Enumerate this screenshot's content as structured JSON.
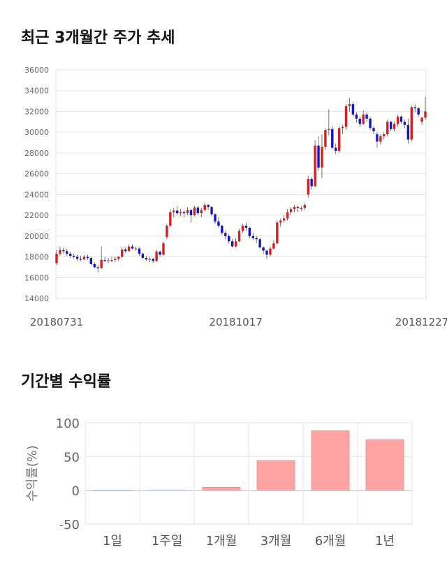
{
  "titles": {
    "price": "최근 3개월간 주가 추세",
    "returns": "기간별 수익률"
  },
  "colors": {
    "up": "#d42020",
    "down": "#1515c8",
    "wick": "#555555",
    "bar": "#ffa3a3",
    "bar_edge": "#e88a8a",
    "grid": "#e6e6e6"
  },
  "chart_data": [
    {
      "type": "candlestick",
      "title": "최근 3개월간 주가 추세",
      "ylim": [
        14000,
        36000
      ],
      "yticks": [
        14000,
        16000,
        18000,
        20000,
        22000,
        24000,
        26000,
        28000,
        30000,
        32000,
        34000,
        36000
      ],
      "xtick_labels": [
        {
          "index": 0,
          "label": "20180731"
        },
        {
          "index": 52,
          "label": "20181017"
        },
        {
          "index": 106,
          "label": "20181227"
        }
      ],
      "grid": "horizontal",
      "closes": [
        18300,
        18650,
        18550,
        18300,
        18100,
        18000,
        17800,
        17750,
        18000,
        17900,
        17300,
        17000,
        16900,
        17700,
        17650,
        17650,
        17700,
        17800,
        18000,
        18700,
        18550,
        19000,
        18800,
        18800,
        18300,
        17900,
        17750,
        17800,
        17600,
        18500,
        18200,
        19300,
        21000,
        22300,
        22450,
        22200,
        22300,
        22200,
        22500,
        22000,
        22750,
        22200,
        22500,
        23000,
        22800,
        22100,
        21400,
        21000,
        20300,
        20000,
        19500,
        19000,
        19500,
        20500,
        21000,
        20800,
        20000,
        19800,
        19700,
        18900,
        18600,
        18200,
        18800,
        19300,
        21300,
        21500,
        21700,
        22300,
        22600,
        22800,
        22700,
        22700,
        23000,
        25500,
        24800,
        28700,
        26600,
        28600,
        30200,
        30300,
        28500,
        28200,
        30400,
        30500,
        32500,
        32700,
        31700,
        31300,
        30800,
        31700,
        31300,
        30400,
        30100,
        29100,
        29600,
        29800,
        31000,
        30300,
        30800,
        31500,
        31000,
        30700,
        29300,
        32400,
        32300,
        31700,
        31400,
        32000
      ],
      "candles": [
        {
          "o": 17400,
          "h": 18700,
          "l": 17200,
          "c": 18300
        },
        {
          "o": 18300,
          "h": 19000,
          "l": 18100,
          "c": 18650
        },
        {
          "o": 18650,
          "h": 18900,
          "l": 18300,
          "c": 18550
        },
        {
          "o": 18550,
          "h": 18800,
          "l": 18100,
          "c": 18300
        },
        {
          "o": 18300,
          "h": 18500,
          "l": 17900,
          "c": 18100
        },
        {
          "o": 18100,
          "h": 18300,
          "l": 17800,
          "c": 18000
        },
        {
          "o": 18000,
          "h": 18200,
          "l": 17600,
          "c": 17800
        },
        {
          "o": 17800,
          "h": 18100,
          "l": 17600,
          "c": 17750
        },
        {
          "o": 17750,
          "h": 18200,
          "l": 17700,
          "c": 18000
        },
        {
          "o": 18000,
          "h": 18200,
          "l": 17700,
          "c": 17900
        },
        {
          "o": 17900,
          "h": 18000,
          "l": 17200,
          "c": 17300
        },
        {
          "o": 17300,
          "h": 17500,
          "l": 16900,
          "c": 17000
        },
        {
          "o": 17000,
          "h": 17200,
          "l": 16500,
          "c": 16900
        },
        {
          "o": 16900,
          "h": 19000,
          "l": 16800,
          "c": 17700
        },
        {
          "o": 17700,
          "h": 18000,
          "l": 17500,
          "c": 17650
        },
        {
          "o": 17650,
          "h": 17900,
          "l": 17400,
          "c": 17650
        },
        {
          "o": 17650,
          "h": 18000,
          "l": 17500,
          "c": 17700
        },
        {
          "o": 17700,
          "h": 18000,
          "l": 17500,
          "c": 17800
        },
        {
          "o": 17800,
          "h": 18100,
          "l": 17600,
          "c": 18000
        },
        {
          "o": 18000,
          "h": 18900,
          "l": 17900,
          "c": 18700
        },
        {
          "o": 18700,
          "h": 18900,
          "l": 18400,
          "c": 18550
        },
        {
          "o": 18550,
          "h": 19200,
          "l": 18500,
          "c": 19000
        },
        {
          "o": 19000,
          "h": 19200,
          "l": 18700,
          "c": 18800
        },
        {
          "o": 18800,
          "h": 19000,
          "l": 18600,
          "c": 18800
        },
        {
          "o": 18800,
          "h": 18900,
          "l": 18100,
          "c": 18300
        },
        {
          "o": 18300,
          "h": 18400,
          "l": 17800,
          "c": 17900
        },
        {
          "o": 17900,
          "h": 18100,
          "l": 17600,
          "c": 17750
        },
        {
          "o": 17750,
          "h": 18000,
          "l": 17500,
          "c": 17800
        },
        {
          "o": 17800,
          "h": 17900,
          "l": 17400,
          "c": 17600
        },
        {
          "o": 17600,
          "h": 18700,
          "l": 17500,
          "c": 18500
        },
        {
          "o": 18500,
          "h": 18600,
          "l": 18000,
          "c": 18200
        },
        {
          "o": 18200,
          "h": 19500,
          "l": 18100,
          "c": 19300
        },
        {
          "o": 19900,
          "h": 21200,
          "l": 19700,
          "c": 21000
        },
        {
          "o": 21000,
          "h": 22600,
          "l": 20900,
          "c": 22300
        },
        {
          "o": 22300,
          "h": 22700,
          "l": 21800,
          "c": 22450
        },
        {
          "o": 22450,
          "h": 22900,
          "l": 22000,
          "c": 22200
        },
        {
          "o": 22200,
          "h": 22600,
          "l": 21900,
          "c": 22300
        },
        {
          "o": 22300,
          "h": 22500,
          "l": 21800,
          "c": 22200
        },
        {
          "o": 22200,
          "h": 22800,
          "l": 22000,
          "c": 22500
        },
        {
          "o": 22500,
          "h": 22600,
          "l": 21300,
          "c": 22000
        },
        {
          "o": 22000,
          "h": 22900,
          "l": 21900,
          "c": 22750
        },
        {
          "o": 22750,
          "h": 22900,
          "l": 22000,
          "c": 22200
        },
        {
          "o": 22200,
          "h": 22700,
          "l": 21800,
          "c": 22500
        },
        {
          "o": 22500,
          "h": 23200,
          "l": 22400,
          "c": 23000
        },
        {
          "o": 23000,
          "h": 23100,
          "l": 22500,
          "c": 22800
        },
        {
          "o": 22800,
          "h": 22900,
          "l": 21900,
          "c": 22100
        },
        {
          "o": 22100,
          "h": 22200,
          "l": 21200,
          "c": 21400
        },
        {
          "o": 21400,
          "h": 21800,
          "l": 20800,
          "c": 21000
        },
        {
          "o": 21000,
          "h": 21100,
          "l": 20100,
          "c": 20300
        },
        {
          "o": 20300,
          "h": 20500,
          "l": 19700,
          "c": 20000
        },
        {
          "o": 20000,
          "h": 20200,
          "l": 19300,
          "c": 19500
        },
        {
          "o": 19500,
          "h": 19700,
          "l": 18900,
          "c": 19000
        },
        {
          "o": 19000,
          "h": 19800,
          "l": 18900,
          "c": 19500
        },
        {
          "o": 19500,
          "h": 20700,
          "l": 19400,
          "c": 20500
        },
        {
          "o": 20500,
          "h": 21200,
          "l": 20300,
          "c": 21000
        },
        {
          "o": 21000,
          "h": 21300,
          "l": 20500,
          "c": 20800
        },
        {
          "o": 20800,
          "h": 20900,
          "l": 19800,
          "c": 20000
        },
        {
          "o": 20000,
          "h": 20300,
          "l": 19600,
          "c": 19800
        },
        {
          "o": 19800,
          "h": 20000,
          "l": 19300,
          "c": 19700
        },
        {
          "o": 19700,
          "h": 19800,
          "l": 18800,
          "c": 18900
        },
        {
          "o": 18900,
          "h": 19000,
          "l": 18300,
          "c": 18600
        },
        {
          "o": 18600,
          "h": 18700,
          "l": 17800,
          "c": 18200
        },
        {
          "o": 18200,
          "h": 19000,
          "l": 18000,
          "c": 18800
        },
        {
          "o": 18800,
          "h": 19600,
          "l": 18700,
          "c": 19300
        },
        {
          "o": 19300,
          "h": 21500,
          "l": 19200,
          "c": 21300
        },
        {
          "o": 21300,
          "h": 21700,
          "l": 20900,
          "c": 21500
        },
        {
          "o": 21500,
          "h": 22000,
          "l": 21300,
          "c": 21700
        },
        {
          "o": 21700,
          "h": 22600,
          "l": 21500,
          "c": 22300
        },
        {
          "o": 22300,
          "h": 22800,
          "l": 22000,
          "c": 22600
        },
        {
          "o": 22600,
          "h": 23000,
          "l": 22300,
          "c": 22800
        },
        {
          "o": 22800,
          "h": 22900,
          "l": 22300,
          "c": 22700
        },
        {
          "o": 22700,
          "h": 22900,
          "l": 22400,
          "c": 22700
        },
        {
          "o": 22700,
          "h": 23200,
          "l": 22500,
          "c": 23000
        },
        {
          "o": 24000,
          "h": 25800,
          "l": 23700,
          "c": 25500
        },
        {
          "o": 25500,
          "h": 25700,
          "l": 24500,
          "c": 24800
        },
        {
          "o": 24800,
          "h": 29200,
          "l": 24700,
          "c": 28700
        },
        {
          "o": 28700,
          "h": 29600,
          "l": 26300,
          "c": 26600
        },
        {
          "o": 26600,
          "h": 29800,
          "l": 25600,
          "c": 28600
        },
        {
          "o": 28600,
          "h": 30400,
          "l": 28300,
          "c": 30200
        },
        {
          "o": 30200,
          "h": 32200,
          "l": 29700,
          "c": 30300
        },
        {
          "o": 30300,
          "h": 30600,
          "l": 28400,
          "c": 28500
        },
        {
          "o": 28500,
          "h": 28900,
          "l": 27900,
          "c": 28200
        },
        {
          "o": 28200,
          "h": 30600,
          "l": 28000,
          "c": 30400
        },
        {
          "o": 30400,
          "h": 30700,
          "l": 29800,
          "c": 30500
        },
        {
          "o": 30500,
          "h": 32700,
          "l": 30200,
          "c": 32500
        },
        {
          "o": 32500,
          "h": 33300,
          "l": 32000,
          "c": 32700
        },
        {
          "o": 32700,
          "h": 32900,
          "l": 31500,
          "c": 31700
        },
        {
          "o": 31700,
          "h": 31900,
          "l": 30900,
          "c": 31300
        },
        {
          "o": 31300,
          "h": 31500,
          "l": 30500,
          "c": 30800
        },
        {
          "o": 30800,
          "h": 32100,
          "l": 30700,
          "c": 31700
        },
        {
          "o": 31700,
          "h": 31900,
          "l": 31000,
          "c": 31300
        },
        {
          "o": 31300,
          "h": 31500,
          "l": 30200,
          "c": 30400
        },
        {
          "o": 30400,
          "h": 30600,
          "l": 29800,
          "c": 30100
        },
        {
          "o": 29800,
          "h": 30000,
          "l": 28500,
          "c": 29100
        },
        {
          "o": 29100,
          "h": 29800,
          "l": 28800,
          "c": 29600
        },
        {
          "o": 29600,
          "h": 30000,
          "l": 29300,
          "c": 29800
        },
        {
          "o": 29800,
          "h": 31200,
          "l": 29600,
          "c": 31000
        },
        {
          "o": 31000,
          "h": 31100,
          "l": 30100,
          "c": 30300
        },
        {
          "o": 30300,
          "h": 31000,
          "l": 30100,
          "c": 30800
        },
        {
          "o": 30800,
          "h": 31700,
          "l": 30500,
          "c": 31500
        },
        {
          "o": 31500,
          "h": 31600,
          "l": 30800,
          "c": 31000
        },
        {
          "o": 31000,
          "h": 31200,
          "l": 30400,
          "c": 30700
        },
        {
          "o": 30700,
          "h": 31300,
          "l": 28900,
          "c": 29300
        },
        {
          "o": 29300,
          "h": 32600,
          "l": 29100,
          "c": 32400
        },
        {
          "o": 32400,
          "h": 32700,
          "l": 31900,
          "c": 32300
        },
        {
          "o": 32300,
          "h": 32400,
          "l": 31500,
          "c": 31700
        },
        {
          "o": 31000,
          "h": 31500,
          "l": 30700,
          "c": 31400
        },
        {
          "o": 31400,
          "h": 33400,
          "l": 31200,
          "c": 32000
        }
      ]
    },
    {
      "type": "bar",
      "title": "기간별 수익률",
      "ylabel": "수익률(%)",
      "categories": [
        "1일",
        "1주일",
        "1개월",
        "3개월",
        "6개월",
        "1년"
      ],
      "values": [
        0,
        0.5,
        4.5,
        44,
        88,
        75
      ],
      "ylim": [
        -50,
        100
      ],
      "yticks": [
        -50,
        0,
        50,
        100
      ],
      "grid": "both"
    }
  ]
}
